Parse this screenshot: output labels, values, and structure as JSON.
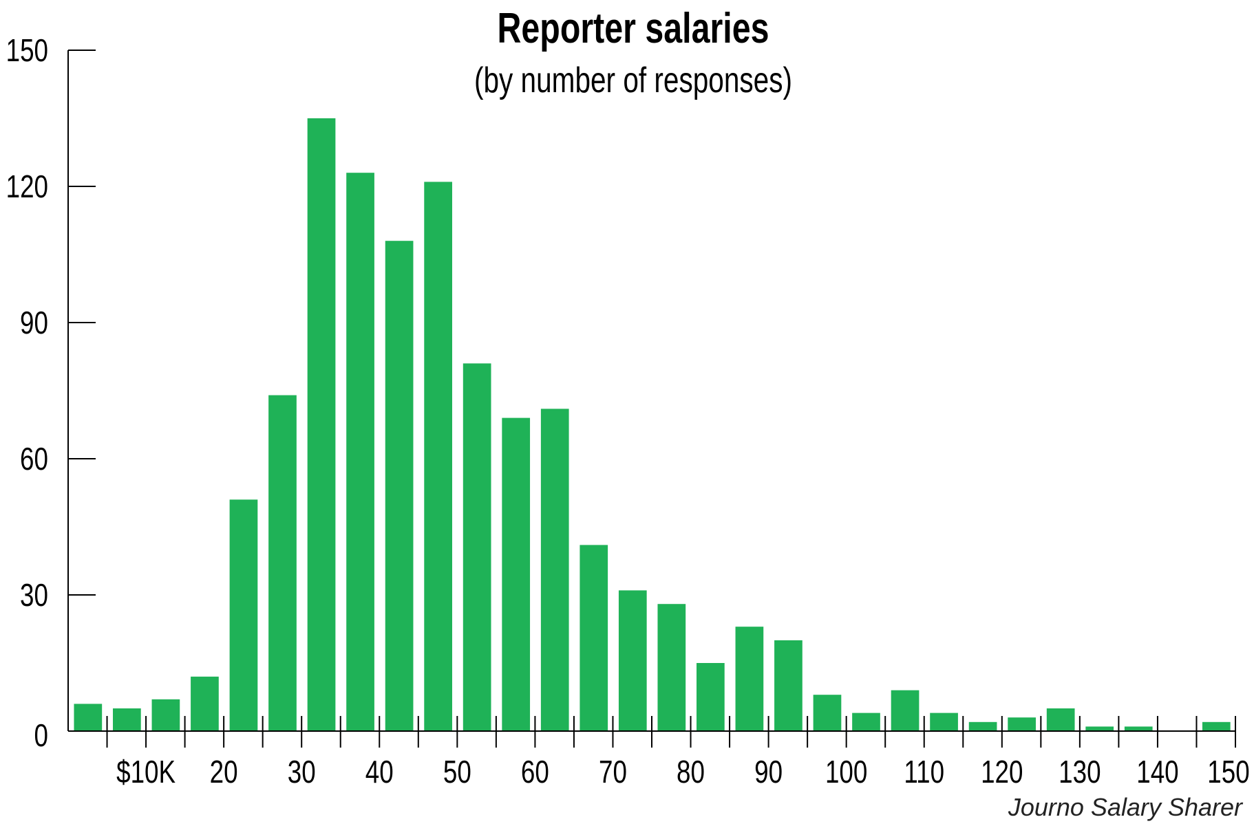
{
  "chart_data": {
    "type": "bar",
    "title": "Reporter salaries",
    "subtitle": "(by number of responses)",
    "source": "Journo Salary Sharer",
    "xlabel": "",
    "ylabel": "",
    "bin_edges_k": [
      0,
      5,
      10,
      15,
      20,
      25,
      30,
      35,
      40,
      45,
      50,
      55,
      60,
      65,
      70,
      75,
      80,
      85,
      90,
      95,
      100,
      105,
      110,
      115,
      120,
      125,
      130,
      135,
      140,
      145,
      150
    ],
    "values": [
      6,
      5,
      7,
      12,
      51,
      74,
      135,
      123,
      108,
      121,
      81,
      69,
      71,
      41,
      31,
      28,
      15,
      23,
      20,
      8,
      4,
      9,
      4,
      2,
      3,
      5,
      1,
      1,
      0,
      2
    ],
    "xlim": [
      0,
      150
    ],
    "ylim": [
      0,
      150
    ],
    "x_ticks": [
      10,
      20,
      30,
      40,
      50,
      60,
      70,
      80,
      90,
      100,
      110,
      120,
      130,
      140,
      150
    ],
    "x_tick_labels": [
      "$10K",
      "20",
      "30",
      "40",
      "50",
      "60",
      "70",
      "80",
      "90",
      "100",
      "110",
      "120",
      "130",
      "140",
      "150"
    ],
    "y_ticks": [
      0,
      30,
      60,
      90,
      120,
      150
    ],
    "y_tick_labels": [
      "0",
      "30",
      "60",
      "90",
      "120",
      "150"
    ],
    "grid": false,
    "legend": "none",
    "bar_color": "#1fb257"
  }
}
